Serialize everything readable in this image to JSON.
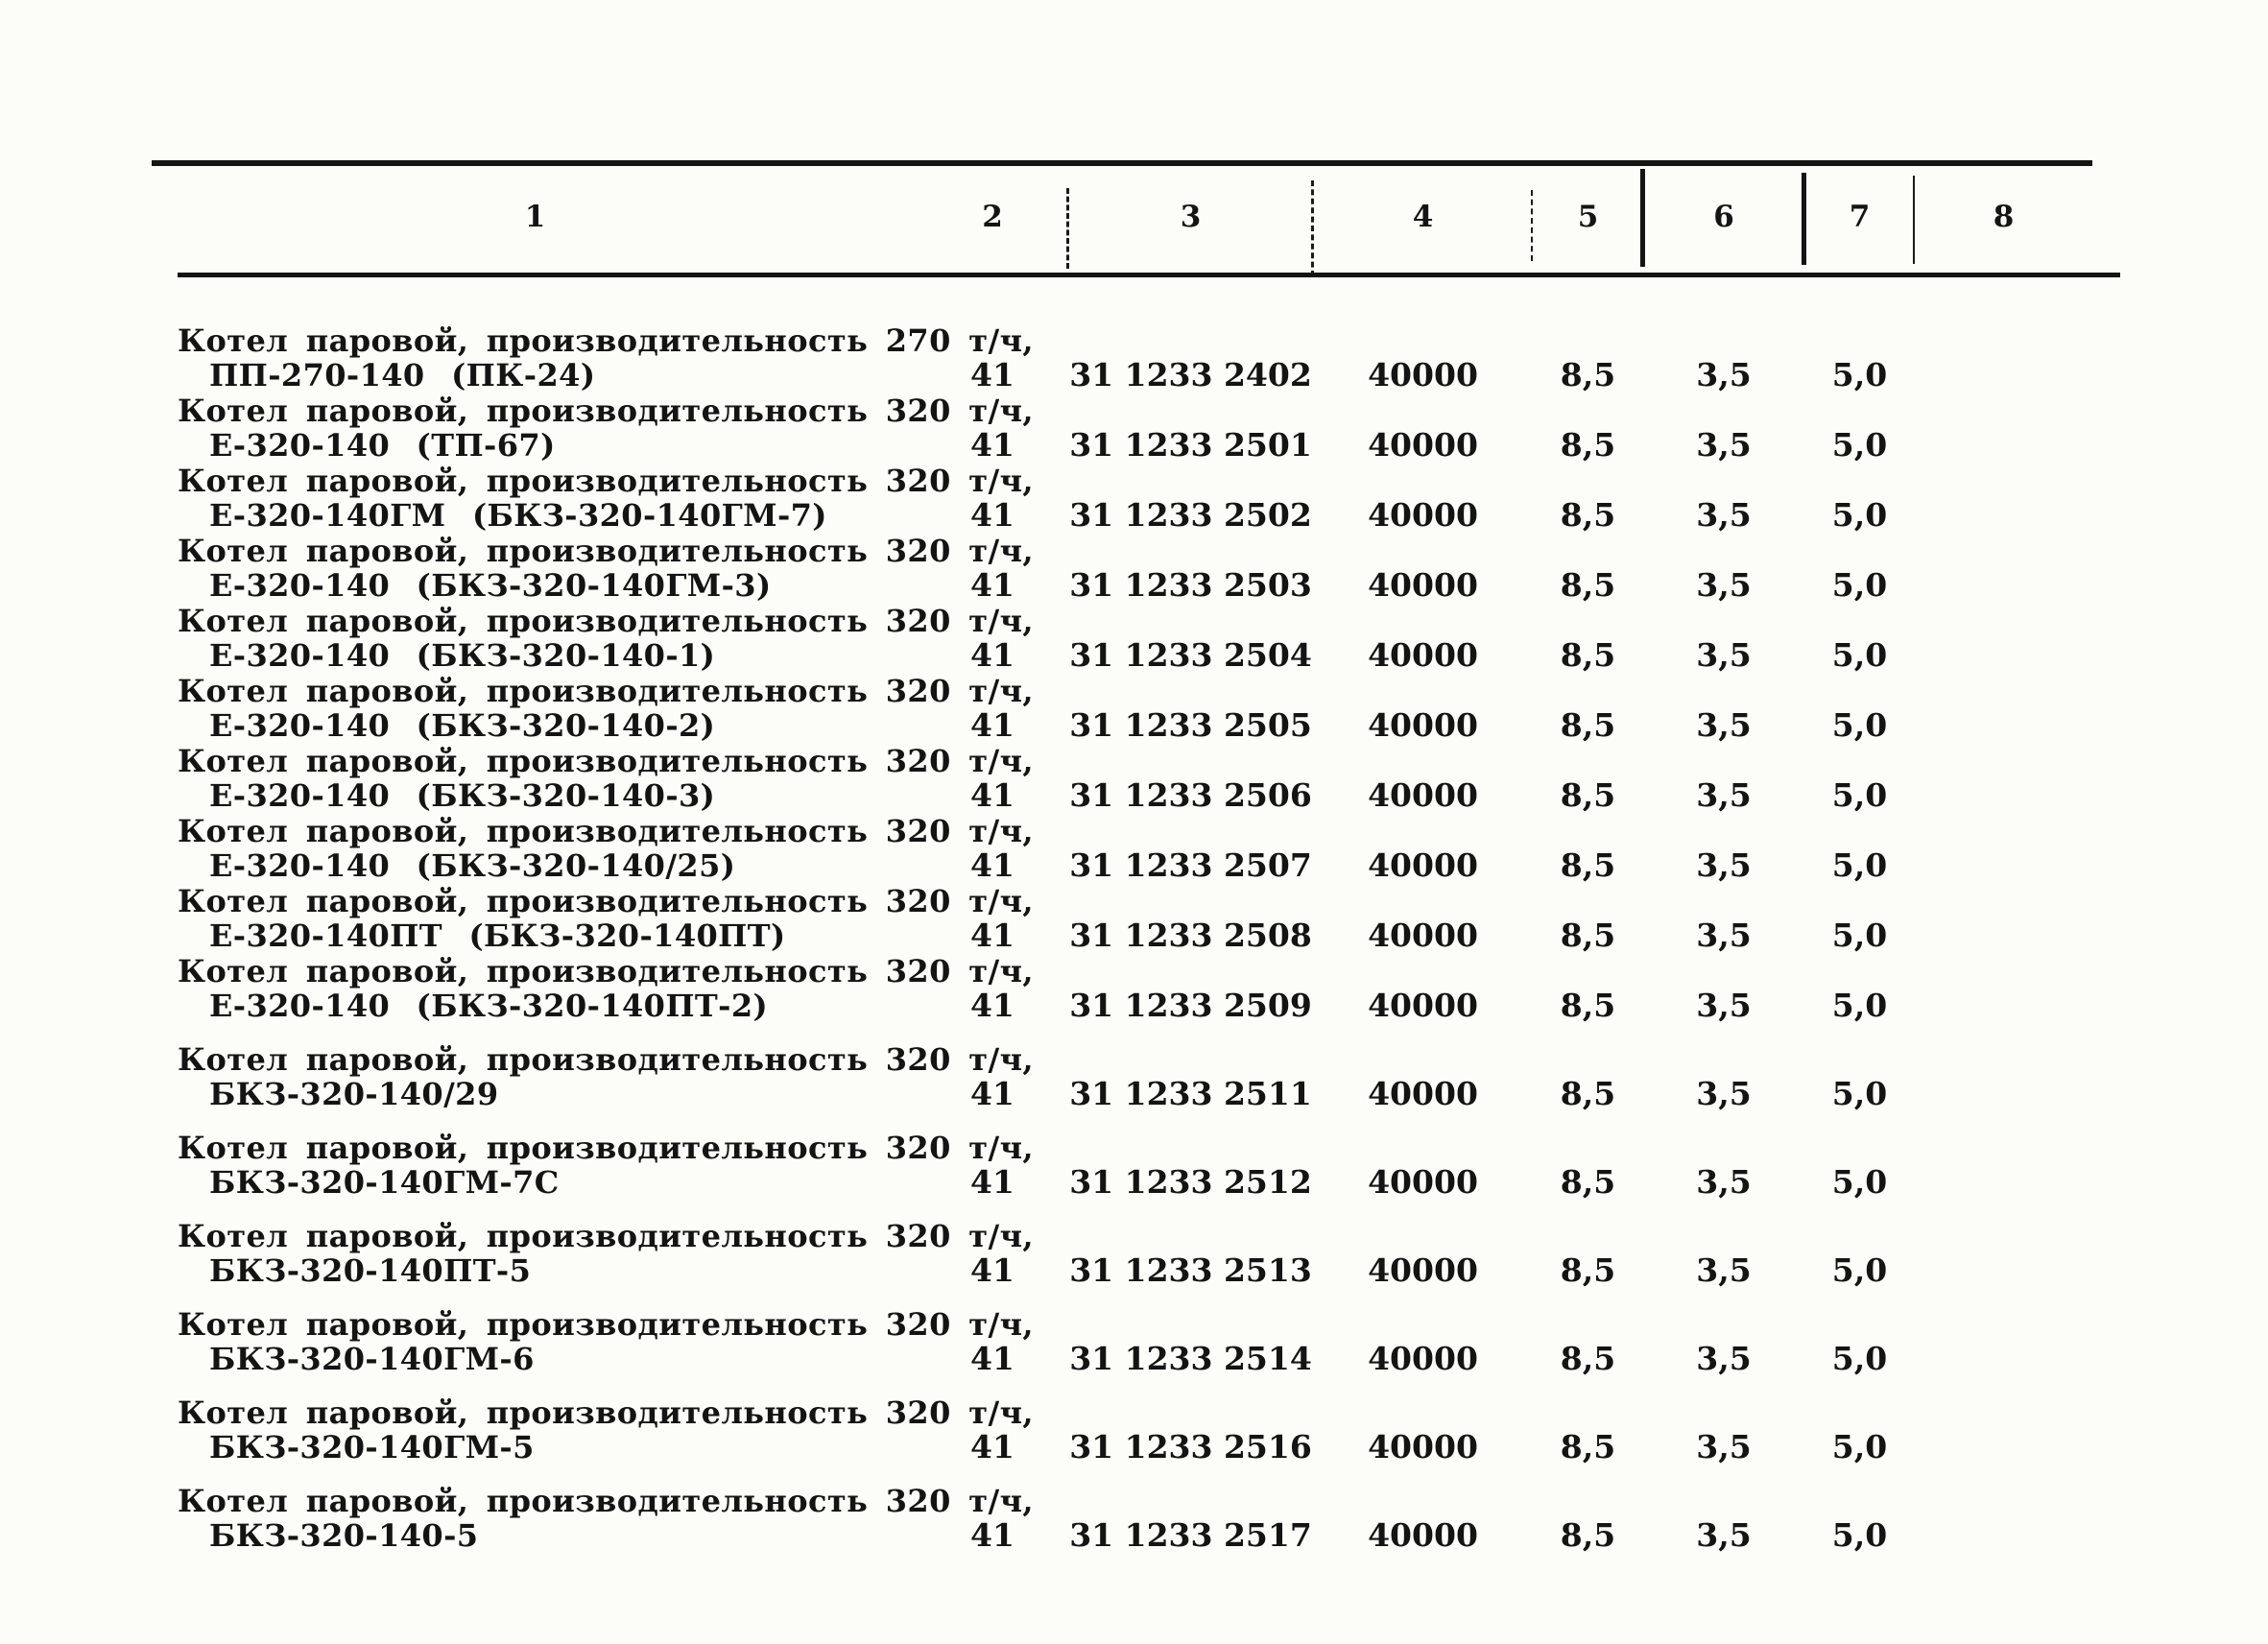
{
  "page": {
    "background_color": "#fcfcf9",
    "ink_color": "#141414"
  },
  "table": {
    "header_cols": [
      "1",
      "2",
      "3",
      "4",
      "5",
      "6",
      "7",
      "8"
    ],
    "rows": [
      {
        "desc1": "Котел паровой, производительность 270 т/ч,",
        "desc2": "ПП-270-140 (ПК-24)",
        "c2": "41",
        "c3": "31 1233 2402",
        "c4": "40000",
        "c5": "8,5",
        "c6": "3,5",
        "c7": "5,0",
        "c8": ""
      },
      {
        "desc1": "Котел паровой, производительность 320 т/ч,",
        "desc2": "Е-320-140 (ТП-67)",
        "c2": "41",
        "c3": "31 1233 2501",
        "c4": "40000",
        "c5": "8,5",
        "c6": "3,5",
        "c7": "5,0",
        "c8": ""
      },
      {
        "desc1": "Котел паровой, производительность 320 т/ч,",
        "desc2": "Е-320-140ГМ (БКЗ-320-140ГМ-7)",
        "c2": "41",
        "c3": "31 1233 2502",
        "c4": "40000",
        "c5": "8,5",
        "c6": "3,5",
        "c7": "5,0",
        "c8": ""
      },
      {
        "desc1": "Котел паровой, производительность 320 т/ч,",
        "desc2": "Е-320-140 (БКЗ-320-140ГМ-3)",
        "c2": "41",
        "c3": "31 1233 2503",
        "c4": "40000",
        "c5": "8,5",
        "c6": "3,5",
        "c7": "5,0",
        "c8": ""
      },
      {
        "desc1": "Котел паровой, производительность 320 т/ч,",
        "desc2": "Е-320-140 (БКЗ-320-140-1)",
        "c2": "41",
        "c3": "31 1233 2504",
        "c4": "40000",
        "c5": "8,5",
        "c6": "3,5",
        "c7": "5,0",
        "c8": ""
      },
      {
        "desc1": "Котел паровой, производительность 320 т/ч,",
        "desc2": "Е-320-140 (БКЗ-320-140-2)",
        "c2": "41",
        "c3": "31 1233 2505",
        "c4": "40000",
        "c5": "8,5",
        "c6": "3,5",
        "c7": "5,0",
        "c8": ""
      },
      {
        "desc1": "Котел паровой, производительность 320 т/ч,",
        "desc2": "Е-320-140 (БКЗ-320-140-3)",
        "c2": "41",
        "c3": "31 1233 2506",
        "c4": "40000",
        "c5": "8,5",
        "c6": "3,5",
        "c7": "5,0",
        "c8": ""
      },
      {
        "desc1": "Котел паровой, производительность 320 т/ч,",
        "desc2": "Е-320-140 (БКЗ-320-140/25)",
        "c2": "41",
        "c3": "31 1233 2507",
        "c4": "40000",
        "c5": "8,5",
        "c6": "3,5",
        "c7": "5,0",
        "c8": ""
      },
      {
        "desc1": "Котел паровой, производительность 320 т/ч,",
        "desc2": "Е-320-140ПТ (БКЗ-320-140ПТ)",
        "c2": "41",
        "c3": "31 1233 2508",
        "c4": "40000",
        "c5": "8,5",
        "c6": "3,5",
        "c7": "5,0",
        "c8": ""
      },
      {
        "desc1": "Котел паровой, производительность 320 т/ч,",
        "desc2": "Е-320-140 (БКЗ-320-140ПТ-2)",
        "c2": "41",
        "c3": "31 1233 2509",
        "c4": "40000",
        "c5": "8,5",
        "c6": "3,5",
        "c7": "5,0",
        "c8": ""
      },
      {
        "desc1": "Котел паровой, производительность 320 т/ч,",
        "desc2": "БКЗ-320-140/29",
        "c2": "41",
        "c3": "31 1233 2511",
        "c4": "40000",
        "c5": "8,5",
        "c6": "3,5",
        "c7": "5,0",
        "c8": ""
      },
      {
        "desc1": "Котел паровой, производительность 320 т/ч,",
        "desc2": "БКЗ-320-140ГМ-7С",
        "c2": "41",
        "c3": "31 1233 2512",
        "c4": "40000",
        "c5": "8,5",
        "c6": "3,5",
        "c7": "5,0",
        "c8": ""
      },
      {
        "desc1": "Котел паровой, производительность 320 т/ч,",
        "desc2": "БКЗ-320-140ПТ-5",
        "c2": "41",
        "c3": "31 1233 2513",
        "c4": "40000",
        "c5": "8,5",
        "c6": "3,5",
        "c7": "5,0",
        "c8": ""
      },
      {
        "desc1": "Котел паровой, производительность 320 т/ч,",
        "desc2": "БКЗ-320-140ГМ-6",
        "c2": "41",
        "c3": "31 1233 2514",
        "c4": "40000",
        "c5": "8,5",
        "c6": "3,5",
        "c7": "5,0",
        "c8": ""
      },
      {
        "desc1": "Котел паровой, производительность 320 т/ч,",
        "desc2": "БКЗ-320-140ГМ-5",
        "c2": "41",
        "c3": "31 1233 2516",
        "c4": "40000",
        "c5": "8,5",
        "c6": "3,5",
        "c7": "5,0",
        "c8": ""
      },
      {
        "desc1": "Котел паровой, производительность 320 т/ч,",
        "desc2": "БКЗ-320-140-5",
        "c2": "41",
        "c3": "31 1233 2517",
        "c4": "40000",
        "c5": "8,5",
        "c6": "3,5",
        "c7": "5,0",
        "c8": ""
      }
    ]
  }
}
